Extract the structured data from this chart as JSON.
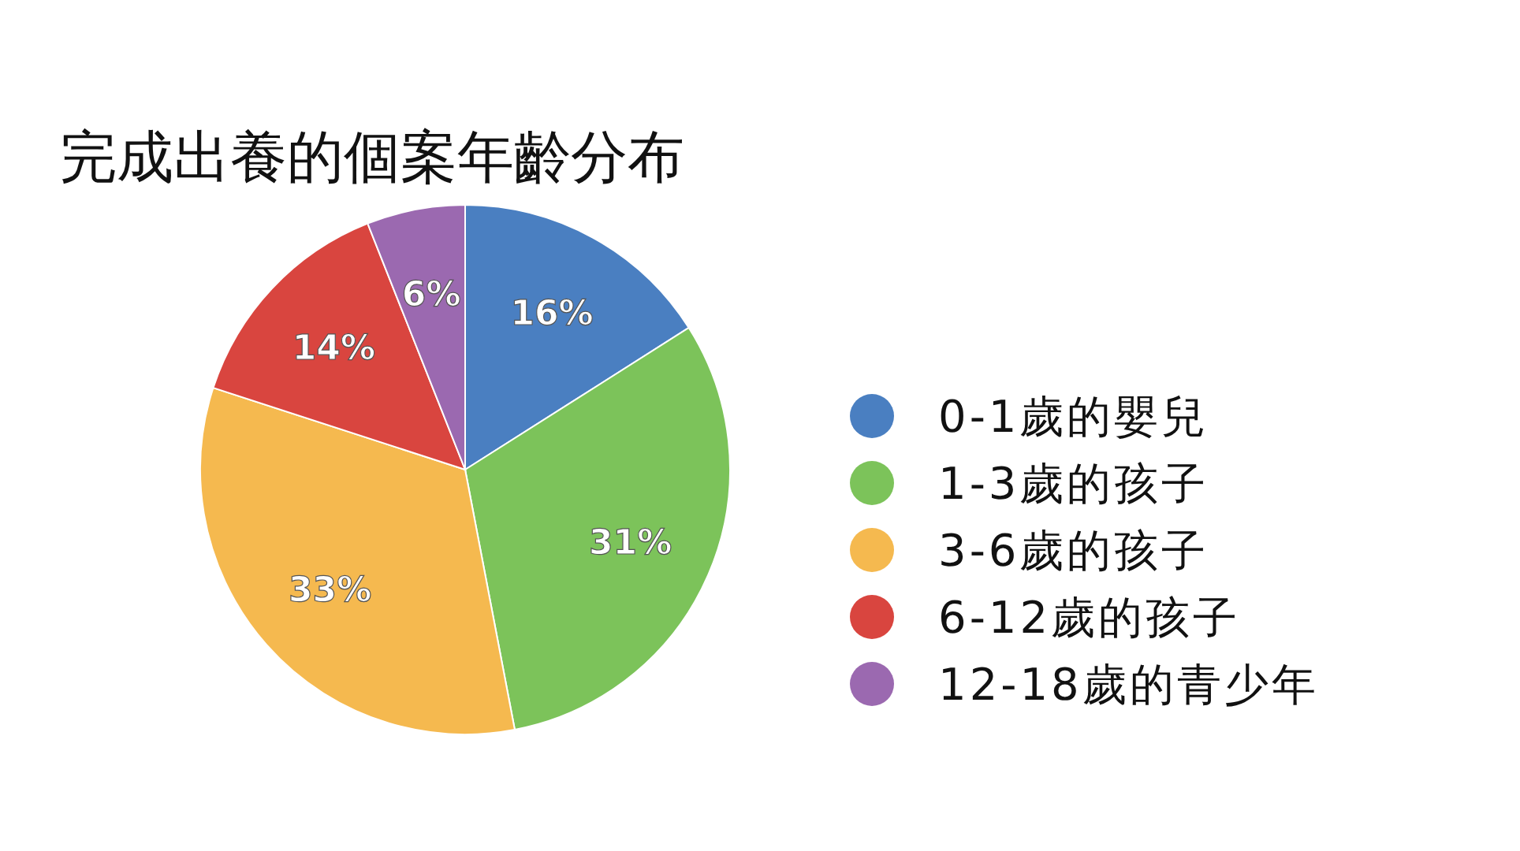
{
  "chart_data": {
    "type": "pie",
    "title": "完成出養的個案年齡分布",
    "categories": [
      "0-1歲的嬰兒",
      "1-3歲的孩子",
      "3-6歲的孩子",
      "6-12歲的孩子",
      "12-18歲的青少年"
    ],
    "values": [
      16,
      31,
      33,
      14,
      6
    ],
    "colors": [
      "#4a7fc1",
      "#7cc35a",
      "#f5b94f",
      "#d9453f",
      "#9b69b0"
    ],
    "value_labels": [
      "16%",
      "31%",
      "33%",
      "14%",
      "6%"
    ],
    "legend": "right"
  }
}
